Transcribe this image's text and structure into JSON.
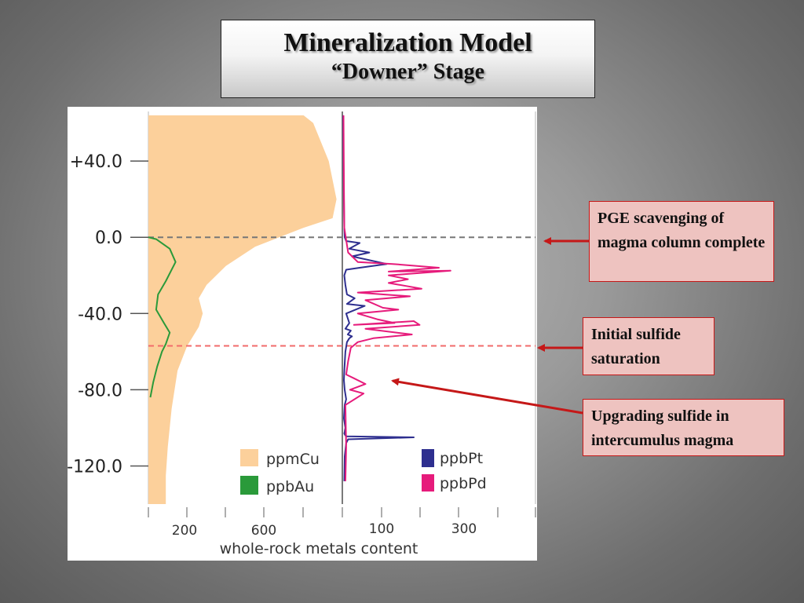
{
  "title": {
    "main": "Mineralization Model",
    "sub": "“Downer”  Stage"
  },
  "callouts": {
    "pge": "PGE scavenging of magma column complete",
    "initial": "Initial sulfide saturation",
    "upgrading": "Upgrading sulfide in intercumulus magma"
  },
  "colors": {
    "cu_fill": "#fcd09b",
    "au": "#2a9a3a",
    "pt": "#2e2f8f",
    "pd": "#e61b7b",
    "callout_bg": "#eec3c0",
    "callout_border": "#c51818"
  },
  "chart_data": {
    "type": "line",
    "xlabel": "whole-rock metals content",
    "ylim": [
      -140,
      66
    ],
    "y_ticks": [
      {
        "value": 40,
        "label": "+40.0"
      },
      {
        "value": 0,
        "label": "0.0"
      },
      {
        "value": -40,
        "label": "-40.0"
      },
      {
        "value": -80,
        "label": "-80.0"
      },
      {
        "value": -120,
        "label": "-120.0"
      }
    ],
    "x_tick_labels": [
      "200",
      "600",
      "100",
      "300"
    ],
    "reference_lines": [
      {
        "depth": 0,
        "color": "#777777",
        "style": "dashed"
      },
      {
        "depth": -57,
        "color": "#f26b6b",
        "style": "dashed"
      }
    ],
    "panels": [
      {
        "xlim": [
          0,
          1000
        ],
        "series": [
          {
            "name": "ppmCu",
            "type": "area",
            "x": [
              800,
              850,
              930,
              970,
              950,
              800,
              550,
              400,
              300,
              260,
              280,
              260,
              200,
              150,
              120,
              100,
              90,
              90,
              90
            ],
            "depth": [
              64,
              60,
              40,
              20,
              10,
              5,
              -5,
              -15,
              -25,
              -32,
              -40,
              -47,
              -57,
              -70,
              -90,
              -110,
              -125,
              -130,
              -140
            ]
          },
          {
            "name": "ppbAu",
            "type": "line",
            "x": [
              0,
              40,
              110,
              140,
              90,
              50,
              40,
              80,
              110,
              90,
              70,
              45,
              25,
              10
            ],
            "depth": [
              0,
              -1,
              -6,
              -13,
              -23,
              -30,
              -38,
              -45,
              -50,
              -56,
              -60,
              -68,
              -76,
              -84
            ]
          }
        ]
      },
      {
        "xlim": [
          0,
          500
        ],
        "series": [
          {
            "name": "ppbPt",
            "type": "line",
            "x": [
              2,
              3,
              4,
              5,
              6,
              10,
              45,
              18,
              70,
              25,
              115,
              45,
              10,
              5,
              8,
              12,
              32,
              12,
              58,
              10,
              18,
              8,
              22,
              14,
              25,
              18,
              12,
              8,
              5,
              4,
              6,
              10,
              6,
              4,
              8,
              6,
              5,
              8,
              12,
              185,
              15,
              10,
              6,
              5
            ],
            "depth": [
              64,
              40,
              20,
              5,
              0,
              -2,
              -3,
              -6,
              -8,
              -10,
              -14,
              -16,
              -17,
              -20,
              -25,
              -30,
              -32,
              -35,
              -36,
              -40,
              -45,
              -48,
              -49,
              -51,
              -52,
              -53,
              -55,
              -60,
              -70,
              -75,
              -80,
              -85,
              -88,
              -95,
              -100,
              -102,
              -103,
              -104,
              -104.5,
              -105,
              -106,
              -108,
              -115,
              -128
            ]
          },
          {
            "name": "ppbPd",
            "type": "line",
            "x": [
              3,
              4,
              5,
              15,
              40,
              130,
              250,
              120,
              280,
              120,
              170,
              120,
              205,
              40,
              175,
              60,
              105,
              145,
              40,
              90,
              135,
              30,
              185,
              200,
              60,
              180,
              80,
              40,
              22,
              15,
              10,
              30,
              60,
              20,
              55,
              8,
              10,
              8
            ],
            "depth": [
              64,
              30,
              5,
              -8,
              -13,
              -14,
              -16,
              -18,
              -17.5,
              -20,
              -22,
              -24,
              -27,
              -29,
              -31,
              -33,
              -37,
              -38,
              -40,
              -43,
              -45,
              -46,
              -44,
              -46,
              -48,
              -51,
              -53,
              -55,
              -58,
              -65,
              -72,
              -74,
              -77,
              -80,
              -82,
              -88,
              -110,
              -128
            ]
          }
        ]
      }
    ]
  }
}
